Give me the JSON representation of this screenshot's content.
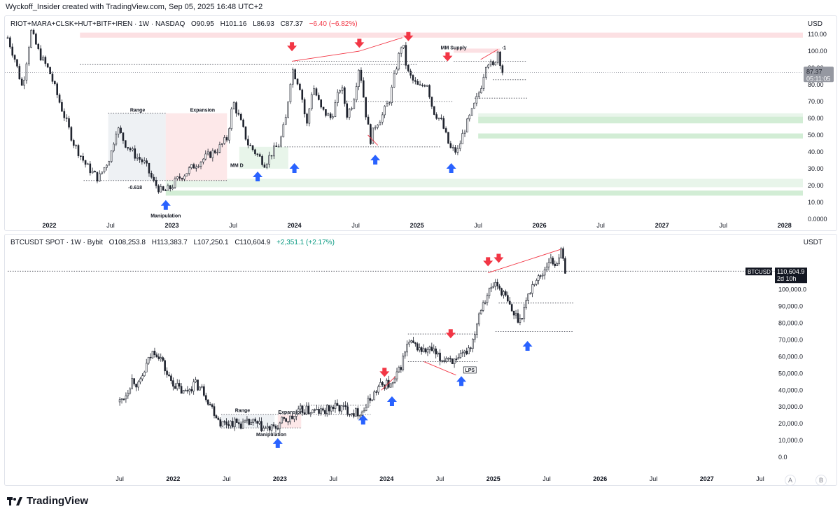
{
  "header": {
    "text": "Wyckoff_Insider created with TradingView.com, Sep 05, 2025 16:48 UTC+2"
  },
  "brand": {
    "name": "TradingView"
  },
  "controls": {
    "auto_label": "A",
    "log_label": "B"
  },
  "colors": {
    "candle": "#1e222d",
    "red_arrow": "#f23645",
    "blue_arrow": "#2962ff",
    "supply_zone": "#fcdde0",
    "demand_zone": "#cdebd0",
    "range_box": "#eceff3"
  },
  "chart_data": [
    {
      "type": "candlestick",
      "symbol": "RIOT+MARA+CLSK+HUT+BITF+IREN",
      "timeframe": "1W",
      "exchange": "NASDAQ",
      "ohlc": {
        "o": "O90.95",
        "h": "H101.16",
        "l": "L86.93",
        "c": "C87.37",
        "change": "−6.40 (−6.82%)"
      },
      "currency": "USD",
      "last_price": "87.37",
      "countdown": "05:11:05",
      "ylim": [
        0,
        115
      ],
      "y_ticks": [
        "110.00",
        "100.00",
        "90.00",
        "80.00",
        "70.00",
        "60.00",
        "50.00",
        "40.00",
        "30.00",
        "20.00",
        "10.00",
        "0.0000"
      ],
      "y_tick_values": [
        110,
        100,
        90,
        80,
        70,
        60,
        50,
        40,
        30,
        20,
        10,
        0
      ],
      "x_ticks": [
        "2022",
        "Jul",
        "2023",
        "Jul",
        "2024",
        "Jul",
        "2025",
        "Jul",
        "2026",
        "Jul",
        "2027",
        "Jul",
        "2028"
      ],
      "x_tick_values": [
        2022.0,
        2022.5,
        2023.0,
        2023.5,
        2024.0,
        2024.5,
        2025.0,
        2025.5,
        2026.0,
        2026.5,
        2027.0,
        2027.5,
        2028.0
      ],
      "xlim": [
        2021.66,
        2028.15
      ],
      "path": [
        [
          2021.66,
          108
        ],
        [
          2021.72,
          95
        ],
        [
          2021.78,
          78
        ],
        [
          2021.85,
          112
        ],
        [
          2021.92,
          98
        ],
        [
          2022.0,
          88
        ],
        [
          2022.1,
          66
        ],
        [
          2022.2,
          45
        ],
        [
          2022.3,
          32
        ],
        [
          2022.4,
          24
        ],
        [
          2022.5,
          38
        ],
        [
          2022.55,
          55
        ],
        [
          2022.62,
          45
        ],
        [
          2022.7,
          38
        ],
        [
          2022.78,
          33
        ],
        [
          2022.85,
          22
        ],
        [
          2022.92,
          16
        ],
        [
          2022.98,
          18
        ],
        [
          2023.05,
          24
        ],
        [
          2023.12,
          28
        ],
        [
          2023.2,
          33
        ],
        [
          2023.3,
          38
        ],
        [
          2023.38,
          42
        ],
        [
          2023.45,
          48
        ],
        [
          2023.5,
          70
        ],
        [
          2023.56,
          58
        ],
        [
          2023.62,
          45
        ],
        [
          2023.7,
          38
        ],
        [
          2023.76,
          33
        ],
        [
          2023.82,
          40
        ],
        [
          2023.88,
          45
        ],
        [
          2023.93,
          60
        ],
        [
          2023.98,
          90
        ],
        [
          2024.05,
          78
        ],
        [
          2024.1,
          55
        ],
        [
          2024.15,
          80
        ],
        [
          2024.22,
          65
        ],
        [
          2024.3,
          60
        ],
        [
          2024.38,
          80
        ],
        [
          2024.43,
          62
        ],
        [
          2024.48,
          70
        ],
        [
          2024.53,
          92
        ],
        [
          2024.58,
          64
        ],
        [
          2024.62,
          47
        ],
        [
          2024.66,
          56
        ],
        [
          2024.72,
          62
        ],
        [
          2024.78,
          72
        ],
        [
          2024.83,
          90
        ],
        [
          2024.88,
          106
        ],
        [
          2024.92,
          88
        ],
        [
          2024.97,
          82
        ],
        [
          2025.02,
          78
        ],
        [
          2025.08,
          82
        ],
        [
          2025.13,
          65
        ],
        [
          2025.2,
          58
        ],
        [
          2025.27,
          42
        ],
        [
          2025.33,
          40
        ],
        [
          2025.38,
          52
        ],
        [
          2025.45,
          64
        ],
        [
          2025.52,
          78
        ],
        [
          2025.57,
          95
        ],
        [
          2025.62,
          90
        ],
        [
          2025.66,
          100
        ],
        [
          2025.7,
          87.37
        ]
      ],
      "levels": [
        {
          "from": 2022.48,
          "to": 2022.95,
          "y": 63,
          "style": "dotted"
        },
        {
          "from": 2022.28,
          "to": 2023.45,
          "y": 23,
          "style": "dotted"
        },
        {
          "from": 2022.25,
          "to": 2025.0,
          "y": 92,
          "style": "dotted"
        },
        {
          "from": 2023.98,
          "to": 2025.25,
          "y": 94,
          "style": "dotted"
        },
        {
          "from": 2023.92,
          "to": 2025.2,
          "y": 43,
          "style": "dotted"
        },
        {
          "from": 2025.3,
          "to": 2025.9,
          "y": 94,
          "style": "dotted"
        },
        {
          "from": 2025.62,
          "to": 2025.9,
          "y": 83,
          "style": "dotted"
        },
        {
          "from": 2025.47,
          "to": 2025.9,
          "y": 72,
          "style": "dotted"
        },
        {
          "from": 2024.42,
          "to": 2025.3,
          "y": 70,
          "style": "dotted"
        }
      ],
      "zones": [
        {
          "kind": "supply",
          "from": 2022.25,
          "to": 2028.15,
          "y1": 108,
          "y2": 111
        },
        {
          "kind": "supply",
          "from": 2025.3,
          "to": 2025.68,
          "y1": 99,
          "y2": 101.5
        },
        {
          "kind": "demand",
          "from": 2025.5,
          "to": 2028.15,
          "y1": 57,
          "y2": 61
        },
        {
          "kind": "demand_light",
          "from": 2025.5,
          "to": 2028.15,
          "y1": 61,
          "y2": 63
        },
        {
          "kind": "demand",
          "from": 2025.5,
          "to": 2028.15,
          "y1": 48,
          "y2": 51
        },
        {
          "kind": "demand_light",
          "from": 2022.95,
          "to": 2028.15,
          "y1": 19,
          "y2": 24
        },
        {
          "kind": "demand",
          "from": 2022.95,
          "to": 2028.15,
          "y1": 14,
          "y2": 17
        },
        {
          "kind": "demand_light",
          "from": 2023.55,
          "to": 2023.95,
          "y1": 30,
          "y2": 43
        },
        {
          "kind": "range",
          "from": 2022.48,
          "to": 2022.95,
          "y1": 23,
          "y2": 63
        },
        {
          "kind": "expansion",
          "from": 2022.95,
          "to": 2023.45,
          "y1": 23,
          "y2": 63
        }
      ],
      "trendlines": [
        {
          "x1": 2023.98,
          "y1": 94,
          "x2": 2024.53,
          "y2": 100
        },
        {
          "x1": 2024.53,
          "y1": 100,
          "x2": 2024.88,
          "y2": 108
        },
        {
          "x1": 2025.52,
          "y1": 95,
          "x2": 2025.66,
          "y2": 101
        },
        {
          "x1": 2024.6,
          "y1": 50,
          "x2": 2024.68,
          "y2": 44
        }
      ],
      "red_arrows": [
        [
          2023.98,
          102
        ],
        [
          2024.53,
          104
        ],
        [
          2024.93,
          108
        ],
        [
          2025.25,
          96
        ]
      ],
      "blue_arrows": [
        [
          2022.95,
          8
        ],
        [
          2023.7,
          25
        ],
        [
          2024.0,
          30
        ],
        [
          2024.66,
          35
        ],
        [
          2025.28,
          30
        ]
      ],
      "annotations": [
        {
          "text": "Range",
          "x": 2022.72,
          "y": 64
        },
        {
          "text": "Expansion",
          "x": 2023.25,
          "y": 64
        },
        {
          "text": "MM D",
          "x": 2023.53,
          "y": 31
        },
        {
          "text": "-0.618",
          "x": 2022.7,
          "y": 18
        },
        {
          "text": "Manipulation",
          "x": 2022.95,
          "y": 1
        },
        {
          "text": "MM Supply",
          "x": 2025.3,
          "y": 101
        },
        {
          "text": "-1",
          "x": 2025.71,
          "y": 101
        }
      ]
    },
    {
      "type": "candlestick",
      "symbol": "BTCUSDT SPOT",
      "timeframe": "1W",
      "exchange": "Bybit",
      "ohlc": {
        "o": "O108,253.8",
        "h": "H113,383.7",
        "l": "L107,250.1",
        "c": "C110,604.9",
        "change": "+2,351.1 (+2.17%)"
      },
      "currency": "USDT",
      "ticker_label": "BTCUSDT",
      "last_price": "110,604.9",
      "countdown": "2d 10h",
      "ylim": [
        -5000,
        127000
      ],
      "y_ticks": [
        "100,000.0",
        "90,000.0",
        "80,000.0",
        "70,000.0",
        "60,000.0",
        "50,000.0",
        "40,000.0",
        "30,000.0",
        "20,000.0",
        "10,000.0",
        "0.0"
      ],
      "y_tick_values": [
        100000,
        90000,
        80000,
        70000,
        60000,
        50000,
        40000,
        30000,
        20000,
        10000,
        0
      ],
      "x_ticks": [
        "Jul",
        "2022",
        "Jul",
        "2023",
        "Jul",
        "2024",
        "Jul",
        "2025",
        "Jul",
        "2026",
        "Jul",
        "2027",
        "Jul"
      ],
      "x_tick_values": [
        2021.5,
        2022.0,
        2022.5,
        2023.0,
        2023.5,
        2024.0,
        2024.5,
        2025.0,
        2025.5,
        2026.0,
        2026.5,
        2027.0,
        2027.5
      ],
      "xlim": [
        2020.45,
        2027.9
      ],
      "path": [
        [
          2021.5,
          33000
        ],
        [
          2021.56,
          38000
        ],
        [
          2021.62,
          47000
        ],
        [
          2021.68,
          42000
        ],
        [
          2021.75,
          55000
        ],
        [
          2021.82,
          64000
        ],
        [
          2021.88,
          60000
        ],
        [
          2021.95,
          48000
        ],
        [
          2022.02,
          43000
        ],
        [
          2022.1,
          38000
        ],
        [
          2022.2,
          44000
        ],
        [
          2022.28,
          40000
        ],
        [
          2022.36,
          30000
        ],
        [
          2022.45,
          20000
        ],
        [
          2022.55,
          21000
        ],
        [
          2022.65,
          19500
        ],
        [
          2022.75,
          20500
        ],
        [
          2022.85,
          17000
        ],
        [
          2022.95,
          16800
        ],
        [
          2023.02,
          21000
        ],
        [
          2023.12,
          23500
        ],
        [
          2023.2,
          28000
        ],
        [
          2023.3,
          27500
        ],
        [
          2023.4,
          27000
        ],
        [
          2023.5,
          30000
        ],
        [
          2023.6,
          29000
        ],
        [
          2023.7,
          26500
        ],
        [
          2023.78,
          27500
        ],
        [
          2023.85,
          35000
        ],
        [
          2023.93,
          42000
        ],
        [
          2024.0,
          44000
        ],
        [
          2024.05,
          42000
        ],
        [
          2024.12,
          52000
        ],
        [
          2024.2,
          68000
        ],
        [
          2024.28,
          66000
        ],
        [
          2024.35,
          63000
        ],
        [
          2024.42,
          64000
        ],
        [
          2024.5,
          58000
        ],
        [
          2024.58,
          60000
        ],
        [
          2024.65,
          56000
        ],
        [
          2024.72,
          61000
        ],
        [
          2024.8,
          68000
        ],
        [
          2024.88,
          90000
        ],
        [
          2024.95,
          98000
        ],
        [
          2025.02,
          104000
        ],
        [
          2025.1,
          97000
        ],
        [
          2025.18,
          86000
        ],
        [
          2025.25,
          82000
        ],
        [
          2025.32,
          95000
        ],
        [
          2025.38,
          105000
        ],
        [
          2025.45,
          108000
        ],
        [
          2025.52,
          118000
        ],
        [
          2025.58,
          115000
        ],
        [
          2025.63,
          123000
        ],
        [
          2025.68,
          110604
        ]
      ],
      "levels": [
        {
          "from": 2020.45,
          "to": 2027.9,
          "y": 111000,
          "style": "dotted"
        },
        {
          "from": 2025.05,
          "to": 2025.75,
          "y": 92000,
          "style": "dotted"
        },
        {
          "from": 2025.02,
          "to": 2025.75,
          "y": 75000,
          "style": "dotted"
        },
        {
          "from": 2022.45,
          "to": 2023.2,
          "y": 25500,
          "style": "dotted"
        },
        {
          "from": 2022.45,
          "to": 2023.2,
          "y": 17500,
          "style": "dotted"
        },
        {
          "from": 2023.2,
          "to": 2023.85,
          "y": 31000,
          "style": "dotted"
        },
        {
          "from": 2023.2,
          "to": 2023.85,
          "y": 25500,
          "style": "dotted"
        },
        {
          "from": 2024.2,
          "to": 2024.85,
          "y": 73500,
          "style": "dotted"
        },
        {
          "from": 2024.2,
          "to": 2024.85,
          "y": 57000,
          "style": "dotted"
        }
      ],
      "zones": [
        {
          "kind": "range",
          "from": 2022.45,
          "to": 2022.95,
          "y1": 17500,
          "y2": 25500
        },
        {
          "kind": "expansion",
          "from": 2022.98,
          "to": 2023.2,
          "y1": 17500,
          "y2": 25500
        }
      ],
      "trendlines": [
        {
          "x1": 2024.95,
          "y1": 110000,
          "x2": 2025.63,
          "y2": 124000
        },
        {
          "x1": 2024.35,
          "y1": 57000,
          "x2": 2024.65,
          "y2": 49000
        },
        {
          "x1": 2023.95,
          "y1": 40000,
          "x2": 2024.08,
          "y2": 48000
        }
      ],
      "red_arrows": [
        [
          2023.98,
          50000
        ],
        [
          2024.6,
          73000
        ],
        [
          2024.95,
          116000
        ],
        [
          2025.05,
          118000
        ]
      ],
      "blue_arrows": [
        [
          2022.98,
          8000
        ],
        [
          2023.78,
          22000
        ],
        [
          2024.05,
          33000
        ],
        [
          2024.7,
          45000
        ],
        [
          2025.32,
          66000
        ]
      ],
      "annotations": [
        {
          "text": "Range",
          "x": 2022.65,
          "y": 27000
        },
        {
          "text": "Expansion",
          "x": 2023.1,
          "y": 26000
        },
        {
          "text": "Manipulation",
          "x": 2022.92,
          "y": 12500
        },
        {
          "text": "LPS",
          "x": 2024.78,
          "y": 51000
        }
      ]
    }
  ]
}
